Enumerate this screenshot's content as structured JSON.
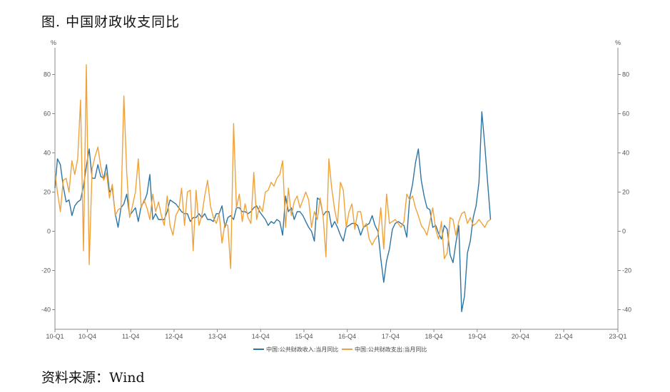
{
  "figure": {
    "title": "图. 中国财政收支同比",
    "source": "资料来源：Wind"
  },
  "colors": {
    "revenue": "#2E75A3",
    "expenditure": "#F0A23A",
    "axis": "#888888"
  },
  "chart_data": {
    "type": "line",
    "title": "",
    "xlabel": "",
    "ylabel": "%",
    "y2label": "%",
    "ylim": [
      -50,
      90
    ],
    "yticks": [
      -40,
      -20,
      0,
      20,
      40,
      60,
      80
    ],
    "grid": false,
    "legend": "bottom-center",
    "x_start": "10-Q1",
    "x_end": "23-Q1",
    "x_ticks": [
      "10-Q1",
      "10-Q4",
      "11-Q4",
      "12-Q4",
      "13-Q4",
      "14-Q4",
      "15-Q4",
      "16-Q4",
      "17-Q4",
      "18-Q4",
      "19-Q4",
      "20-Q4",
      "21-Q4",
      "23-Q1"
    ],
    "series": [
      {
        "name": "中国:公共财政收入:当月同比",
        "color": "#2E75A3",
        "points": [
          [
            0,
            22
          ],
          [
            0.7,
            37
          ],
          [
            1.5,
            34
          ],
          [
            2.3,
            23
          ],
          [
            3.1,
            15
          ],
          [
            3.9,
            16
          ],
          [
            4.7,
            8
          ],
          [
            5.5,
            13
          ],
          [
            6.3,
            15
          ],
          [
            7.1,
            16
          ],
          [
            7.9,
            23
          ],
          [
            8.7,
            33
          ],
          [
            9.5,
            42
          ],
          [
            10.3,
            27
          ],
          [
            11.1,
            27
          ],
          [
            11.9,
            34
          ],
          [
            12.7,
            28
          ],
          [
            13.5,
            27
          ],
          [
            14.3,
            34
          ],
          [
            15.1,
            20
          ],
          [
            15.9,
            22
          ],
          [
            16.7,
            9
          ],
          [
            17.5,
            2
          ],
          [
            18.3,
            12
          ],
          [
            19.1,
            14
          ],
          [
            19.9,
            19
          ],
          [
            20.7,
            8
          ],
          [
            21.5,
            10
          ],
          [
            22.3,
            12
          ],
          [
            23.1,
            5
          ],
          [
            23.9,
            13
          ],
          [
            24.7,
            15
          ],
          [
            25.5,
            19
          ],
          [
            26.3,
            29
          ],
          [
            27.1,
            6
          ],
          [
            27.9,
            9
          ],
          [
            28.7,
            6
          ],
          [
            29.5,
            6
          ],
          [
            30.3,
            6
          ],
          [
            31.1,
            10
          ],
          [
            31.9,
            16
          ],
          [
            32.7,
            15
          ],
          [
            33.5,
            14
          ],
          [
            34.3,
            12
          ],
          [
            35.1,
            10
          ],
          [
            35.9,
            9
          ],
          [
            36.7,
            9
          ],
          [
            37.5,
            5
          ],
          [
            38.3,
            7
          ],
          [
            39.1,
            7
          ],
          [
            39.9,
            9
          ],
          [
            40.7,
            7
          ],
          [
            41.5,
            9
          ],
          [
            42.3,
            6
          ],
          [
            43.1,
            6
          ],
          [
            43.9,
            5
          ],
          [
            44.7,
            9
          ],
          [
            45.5,
            9
          ],
          [
            46.3,
            13
          ],
          [
            47.1,
            2
          ],
          [
            47.9,
            7
          ],
          [
            48.7,
            8
          ],
          [
            49.5,
            6
          ],
          [
            50.3,
            12
          ],
          [
            51.1,
            12
          ],
          [
            51.9,
            10
          ],
          [
            52.7,
            10
          ],
          [
            53.5,
            9
          ],
          [
            54.3,
            10
          ],
          [
            55.1,
            12
          ],
          [
            55.9,
            13
          ],
          [
            56.7,
            10
          ],
          [
            57.5,
            8
          ],
          [
            58.3,
            6
          ],
          [
            59.1,
            3
          ],
          [
            59.9,
            5
          ],
          [
            60.7,
            4
          ],
          [
            61.5,
            6
          ],
          [
            62.3,
            5
          ],
          [
            63.1,
            -2
          ],
          [
            63.9,
            18
          ],
          [
            64.7,
            10
          ],
          [
            65.5,
            12
          ],
          [
            66.3,
            6
          ],
          [
            67.1,
            10
          ],
          [
            67.9,
            10
          ],
          [
            68.7,
            8
          ],
          [
            69.5,
            5
          ],
          [
            70.3,
            2
          ],
          [
            71.1,
            0
          ],
          [
            71.9,
            -5
          ],
          [
            72.7,
            17
          ],
          [
            73.5,
            16
          ],
          [
            74.3,
            8
          ],
          [
            75.1,
            10
          ],
          [
            75.9,
            10
          ],
          [
            76.7,
            2
          ],
          [
            77.5,
            5
          ],
          [
            78.3,
            2
          ],
          [
            79.1,
            -2
          ],
          [
            79.9,
            -5
          ],
          [
            80.7,
            2
          ],
          [
            81.5,
            3
          ],
          [
            82.3,
            4
          ],
          [
            83.1,
            4
          ],
          [
            83.9,
            3
          ],
          [
            84.7,
            -2
          ],
          [
            85.5,
            2
          ],
          [
            86.3,
            3
          ],
          [
            87.1,
            4
          ],
          [
            87.9,
            8
          ],
          [
            88.7,
            3
          ],
          [
            89.5,
            0
          ],
          [
            90.3,
            -14
          ],
          [
            91.1,
            -26
          ],
          [
            91.9,
            -15
          ],
          [
            92.7,
            -9
          ],
          [
            93.5,
            1
          ],
          [
            94.3,
            4
          ],
          [
            95.1,
            5
          ],
          [
            95.9,
            4
          ],
          [
            96.7,
            3
          ],
          [
            97.5,
            -3
          ],
          [
            98.3,
            17
          ],
          [
            99.1,
            24
          ],
          [
            99.9,
            35
          ],
          [
            100.7,
            42
          ],
          [
            101.5,
            26
          ],
          [
            102.3,
            18
          ],
          [
            103.1,
            12
          ],
          [
            103.9,
            11
          ],
          [
            104.7,
            2
          ],
          [
            105.5,
            3
          ],
          [
            106.3,
            -1
          ],
          [
            107.1,
            -4
          ],
          [
            107.9,
            3
          ],
          [
            108.7,
            1
          ],
          [
            109.5,
            -12
          ],
          [
            110.3,
            -16
          ],
          [
            111.1,
            -6
          ],
          [
            111.9,
            3
          ],
          [
            112.7,
            -41
          ],
          [
            113.5,
            -33
          ],
          [
            114.3,
            -11
          ],
          [
            115.1,
            -5
          ],
          [
            115.9,
            7
          ],
          [
            116.7,
            13
          ],
          [
            117.5,
            25
          ],
          [
            118.3,
            61
          ],
          [
            119.1,
            44
          ],
          [
            119.9,
            25
          ],
          [
            120.7,
            6
          ]
        ]
      },
      {
        "name": "中国:公共财政支出:当月同比",
        "color": "#F0A23A",
        "points": [
          [
            0,
            30
          ],
          [
            0.7,
            20
          ],
          [
            1.5,
            10
          ],
          [
            2.3,
            26
          ],
          [
            3.1,
            27
          ],
          [
            3.9,
            20
          ],
          [
            4.7,
            36
          ],
          [
            5.5,
            29
          ],
          [
            6.3,
            37
          ],
          [
            7.1,
            67
          ],
          [
            7.9,
            -10
          ],
          [
            8.7,
            85
          ],
          [
            9.5,
            -17
          ],
          [
            10.3,
            32
          ],
          [
            11.1,
            38
          ],
          [
            11.9,
            43
          ],
          [
            12.7,
            33
          ],
          [
            13.5,
            26
          ],
          [
            14.3,
            30
          ],
          [
            15.1,
            17
          ],
          [
            15.9,
            24
          ],
          [
            16.7,
            8
          ],
          [
            17.5,
            11
          ],
          [
            18.3,
            12
          ],
          [
            19.1,
            69
          ],
          [
            19.9,
            30
          ],
          [
            20.7,
            7
          ],
          [
            21.5,
            13
          ],
          [
            22.3,
            20
          ],
          [
            23.1,
            37
          ],
          [
            23.9,
            12
          ],
          [
            24.7,
            16
          ],
          [
            25.5,
            12
          ],
          [
            26.3,
            6
          ],
          [
            27.1,
            19
          ],
          [
            27.9,
            10
          ],
          [
            28.7,
            15
          ],
          [
            29.5,
            8
          ],
          [
            30.3,
            3
          ],
          [
            31.1,
            18
          ],
          [
            31.9,
            3
          ],
          [
            32.7,
            -2
          ],
          [
            33.5,
            8
          ],
          [
            34.3,
            11
          ],
          [
            35.1,
            22
          ],
          [
            35.9,
            3
          ],
          [
            36.7,
            20
          ],
          [
            37.5,
            21
          ],
          [
            38.3,
            -10
          ],
          [
            39.1,
            21
          ],
          [
            39.9,
            3
          ],
          [
            40.7,
            8
          ],
          [
            41.5,
            18
          ],
          [
            42.3,
            26
          ],
          [
            43.1,
            13
          ],
          [
            43.9,
            7
          ],
          [
            44.7,
            4
          ],
          [
            45.5,
            9
          ],
          [
            46.3,
            -6
          ],
          [
            47.1,
            4
          ],
          [
            47.9,
            3
          ],
          [
            48.7,
            -19
          ],
          [
            49.5,
            55
          ],
          [
            50.3,
            12
          ],
          [
            51.1,
            19
          ],
          [
            51.9,
            5
          ],
          [
            52.7,
            14
          ],
          [
            53.5,
            7
          ],
          [
            54.3,
            4
          ],
          [
            55.1,
            30
          ],
          [
            55.9,
            6
          ],
          [
            56.7,
            13
          ],
          [
            57.5,
            10
          ],
          [
            58.3,
            20
          ],
          [
            59.1,
            21
          ],
          [
            59.9,
            25
          ],
          [
            60.7,
            23
          ],
          [
            61.5,
            27
          ],
          [
            62.3,
            29
          ],
          [
            63.1,
            36
          ],
          [
            63.9,
            2
          ],
          [
            64.7,
            22
          ],
          [
            65.5,
            8
          ],
          [
            66.3,
            15
          ],
          [
            67.1,
            18
          ],
          [
            67.9,
            12
          ],
          [
            68.7,
            16
          ],
          [
            69.5,
            20
          ],
          [
            70.3,
            16
          ],
          [
            71.1,
            2
          ],
          [
            71.9,
            10
          ],
          [
            72.7,
            6
          ],
          [
            73.5,
            17
          ],
          [
            74.3,
            8
          ],
          [
            75.1,
            -13
          ],
          [
            75.9,
            37
          ],
          [
            76.7,
            22
          ],
          [
            77.5,
            11
          ],
          [
            78.3,
            4
          ],
          [
            79.1,
            25
          ],
          [
            79.9,
            21
          ],
          [
            80.7,
            2
          ],
          [
            81.5,
            10
          ],
          [
            82.3,
            14
          ],
          [
            83.1,
            1
          ],
          [
            83.9,
            10
          ],
          [
            84.7,
            10
          ],
          [
            85.5,
            2
          ],
          [
            86.3,
            4
          ],
          [
            87.1,
            -4
          ],
          [
            87.9,
            -7
          ],
          [
            88.7,
            -4
          ],
          [
            89.5,
            -2
          ],
          [
            90.3,
            12
          ],
          [
            91.1,
            -9
          ],
          [
            91.9,
            19
          ],
          [
            92.7,
            4
          ],
          [
            93.5,
            5
          ],
          [
            94.3,
            6
          ],
          [
            95.1,
            4
          ],
          [
            95.9,
            2
          ],
          [
            96.7,
            5
          ],
          [
            97.5,
            19
          ],
          [
            98.3,
            16
          ],
          [
            99.1,
            18
          ],
          [
            99.9,
            12
          ],
          [
            100.7,
            8
          ],
          [
            101.5,
            3
          ],
          [
            102.3,
            1
          ],
          [
            103.1,
            -2
          ],
          [
            103.9,
            5
          ],
          [
            104.7,
            12
          ],
          [
            105.5,
            1
          ],
          [
            106.3,
            -4
          ],
          [
            107.1,
            5
          ],
          [
            107.9,
            -14
          ],
          [
            108.7,
            -11
          ],
          [
            109.5,
            7
          ],
          [
            110.3,
            6
          ],
          [
            111.1,
            -2
          ],
          [
            111.9,
            5
          ],
          [
            112.7,
            9
          ],
          [
            113.5,
            10
          ],
          [
            114.3,
            4
          ],
          [
            115.1,
            7
          ],
          [
            115.9,
            3
          ],
          [
            116.7,
            4
          ],
          [
            117.5,
            6
          ],
          [
            118.3,
            4
          ],
          [
            119.1,
            2
          ],
          [
            119.9,
            5
          ],
          [
            120.7,
            6
          ]
        ]
      }
    ]
  }
}
